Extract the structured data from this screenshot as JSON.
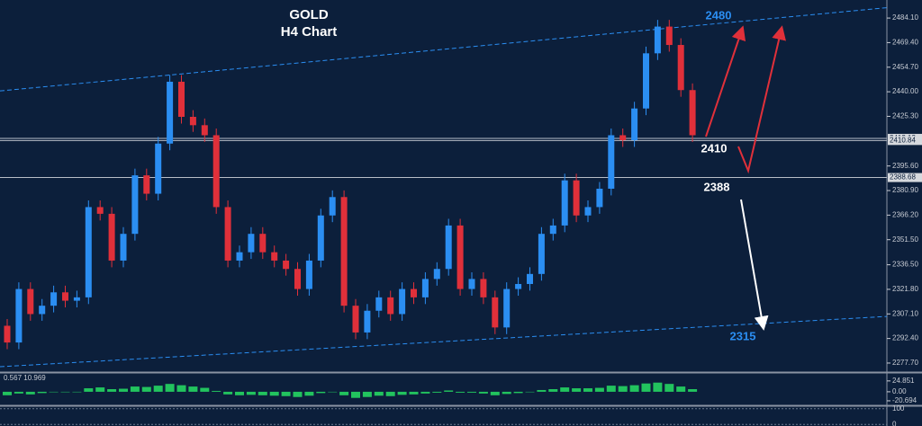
{
  "chart_data": {
    "type": "candlestick",
    "title": "GOLD",
    "subtitle": "H4 Chart",
    "open": [
      2300,
      2290,
      2322,
      2307,
      2312,
      2320,
      2315,
      2317,
      2371,
      2367,
      2339,
      2355,
      2390,
      2379,
      2409,
      2446,
      2425,
      2420,
      2414,
      2371,
      2339,
      2344,
      2355,
      2344,
      2339,
      2334,
      2322,
      2339,
      2366,
      2377,
      2312,
      2296,
      2309,
      2317,
      2307,
      2322,
      2317,
      2328,
      2334,
      2360,
      2322,
      2328,
      2317,
      2299,
      2322,
      2325,
      2331,
      2355,
      2360,
      2387,
      2366,
      2371,
      2382,
      2414,
      2411,
      2430,
      2463,
      2479,
      2468,
      2441
    ],
    "high": [
      2304,
      2326,
      2326,
      2316,
      2324,
      2324,
      2321,
      2375,
      2375,
      2371,
      2359,
      2394,
      2394,
      2413,
      2450,
      2450,
      2429,
      2424,
      2418,
      2375,
      2348,
      2359,
      2359,
      2348,
      2343,
      2338,
      2343,
      2370,
      2381,
      2381,
      2316,
      2313,
      2321,
      2321,
      2326,
      2326,
      2332,
      2338,
      2364,
      2364,
      2332,
      2332,
      2321,
      2326,
      2329,
      2335,
      2359,
      2364,
      2391,
      2391,
      2375,
      2386,
      2418,
      2418,
      2434,
      2467,
      2483,
      2483,
      2472,
      2445
    ],
    "low": [
      2286,
      2286,
      2303,
      2303,
      2308,
      2311,
      2311,
      2313,
      2363,
      2335,
      2335,
      2351,
      2375,
      2375,
      2405,
      2421,
      2416,
      2410,
      2367,
      2335,
      2335,
      2340,
      2340,
      2335,
      2330,
      2318,
      2318,
      2335,
      2362,
      2308,
      2292,
      2292,
      2305,
      2303,
      2303,
      2313,
      2313,
      2324,
      2330,
      2318,
      2318,
      2313,
      2295,
      2295,
      2318,
      2321,
      2327,
      2351,
      2356,
      2362,
      2362,
      2367,
      2378,
      2407,
      2407,
      2426,
      2459,
      2464,
      2437,
      2410
    ],
    "close": [
      2290,
      2322,
      2307,
      2312,
      2320,
      2315,
      2317,
      2371,
      2367,
      2339,
      2355,
      2390,
      2379,
      2409,
      2446,
      2425,
      2420,
      2414,
      2371,
      2339,
      2344,
      2355,
      2344,
      2339,
      2334,
      2322,
      2339,
      2366,
      2377,
      2312,
      2296,
      2309,
      2317,
      2307,
      2322,
      2317,
      2328,
      2334,
      2360,
      2322,
      2328,
      2317,
      2299,
      2322,
      2325,
      2331,
      2355,
      2360,
      2387,
      2366,
      2371,
      2382,
      2414,
      2411,
      2430,
      2463,
      2479,
      2468,
      2441,
      2414
    ],
    "up_color": "#2b8ef2",
    "down_color": "#e0303a",
    "ylim": [
      2272.3,
      2494.9
    ],
    "yticks": [
      {
        "value": 2484.1,
        "label": "2484.10"
      },
      {
        "value": 2469.4,
        "label": "2469.40"
      },
      {
        "value": 2454.7,
        "label": "2454.70"
      },
      {
        "value": 2440,
        "label": "2440.00"
      },
      {
        "value": 2425.3,
        "label": "2425.30"
      },
      {
        "value": 2395.6,
        "label": "2395.60"
      },
      {
        "value": 2380.9,
        "label": "2380.90"
      },
      {
        "value": 2366.2,
        "label": "2366.20"
      },
      {
        "value": 2351.5,
        "label": "2351.50"
      },
      {
        "value": 2336.5,
        "label": "2336.50"
      },
      {
        "value": 2321.8,
        "label": "2321.80"
      },
      {
        "value": 2307.1,
        "label": "2307.10"
      },
      {
        "value": 2292.4,
        "label": "2292.40"
      },
      {
        "value": 2277.7,
        "label": "2277.70"
      }
    ],
    "price_lines": [
      {
        "value": 2412.13,
        "label": "2412.13"
      },
      {
        "value": 2410.84,
        "label": "2410.84"
      },
      {
        "value": 2388.68,
        "label": "2388.68"
      }
    ],
    "channel": [
      {
        "start": 2440.5,
        "end": 2490.3
      },
      {
        "start": 2275.5,
        "end": 2305.6
      }
    ],
    "annotations": [
      "2480",
      "2410",
      "2388",
      "2315"
    ],
    "indicator": {
      "label": "0.567 10.969",
      "color": "#22c35e",
      "values": [
        -8,
        -4,
        -6,
        -3,
        0,
        -1,
        0,
        8,
        10,
        6,
        7,
        12,
        11,
        14,
        18,
        15,
        12,
        9,
        2,
        -6,
        -8,
        -7,
        -8,
        -9,
        -10,
        -12,
        -9,
        -3,
        0,
        -8,
        -14,
        -12,
        -9,
        -10,
        -7,
        -6,
        -4,
        -2,
        3,
        -2,
        -2,
        -4,
        -8,
        -5,
        -3,
        -1,
        4,
        6,
        10,
        8,
        8,
        9,
        14,
        13,
        15,
        19,
        21,
        18,
        12,
        6
      ],
      "ylim": [
        -29,
        41
      ],
      "yticks": [
        {
          "value": 24.851,
          "label": "24.851"
        },
        {
          "value": 0,
          "label": "0.00"
        },
        {
          "value": -20.694,
          "label": "-20.694"
        }
      ]
    },
    "oscillator": {
      "ylim": [
        -10,
        110
      ],
      "yticks": [
        100,
        0
      ]
    }
  }
}
